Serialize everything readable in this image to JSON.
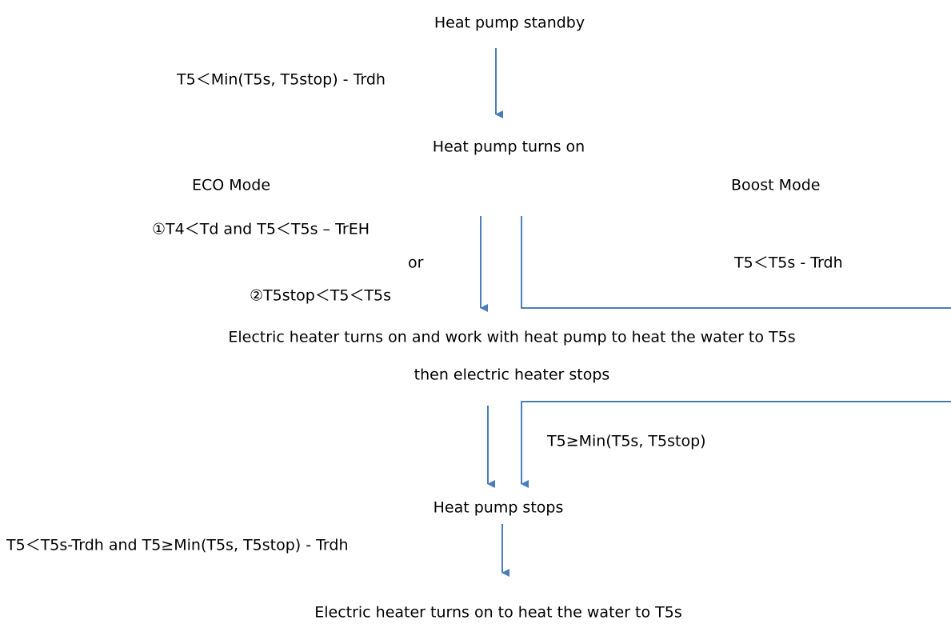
{
  "nodes": [
    {
      "label": "Heat pump standby"
    },
    {
      "label": "Heat pump turns on"
    },
    {
      "label": "Electric heater turns on and work with heat pump to heat the water to T5s"
    },
    {
      "label": "then electric heater stops"
    },
    {
      "label": "Heat pump stops"
    },
    {
      "label": "Electric heater turns on to heat the water to T5s"
    }
  ],
  "modes": [
    "ECO Mode",
    "Boost Mode"
  ],
  "conditions": [
    {
      "label": "T5＜Min(T5s,  T5stop)  -  Trdh"
    },
    {
      "label": "①T4＜Td and    T5＜T5s – TrEH"
    },
    {
      "label": "or"
    },
    {
      "label": "②T5stop＜T5＜T5s"
    },
    {
      "label": "T5＜T5s - Trdh"
    },
    {
      "label": "T5≥Min(T5s, T5stop)"
    },
    {
      "label": "T5＜T5s-Trdh  and  T5≥Min(T5s,  T5stop)  -  Trdh"
    }
  ]
}
